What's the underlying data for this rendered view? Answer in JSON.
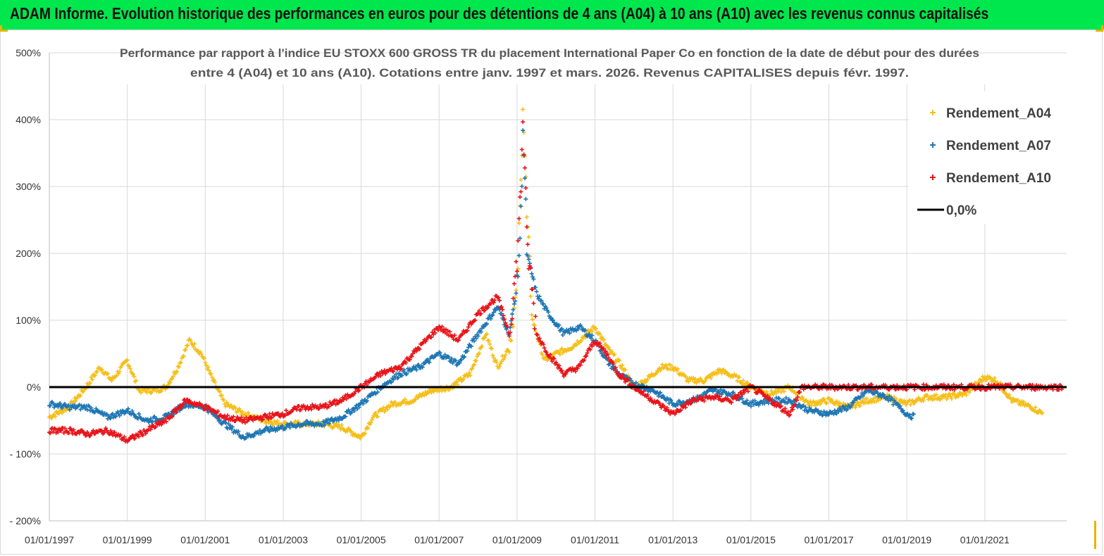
{
  "header": {
    "banner_title": "ADAM Informe. Evolution historique des performances en euros pour des détentions de 4 ans (A04) à 10 ans (A10) avec les revenus connus capitalisés"
  },
  "colors": {
    "banner": "#00e64d",
    "A04": "#f5bf1a",
    "A07": "#1f77b4",
    "A10": "#e8141a",
    "zero": "#000000"
  },
  "chart_data": {
    "type": "scatter",
    "title": [
      "Performance par rapport à l'indice EU STOXX 600 GROSS TR  du placement International Paper Co en fonction de la date de début pour des durées",
      "entre 4 (A04) et 10 ans (A10). Cotations entre janv. 1997 et mars. 2026. Revenus CAPITALISES depuis févr. 1997."
    ],
    "y_ticks": [
      "500%",
      "400%",
      "300%",
      "200%",
      "100%",
      "0%",
      "- 100%",
      "- 200%"
    ],
    "ylim": [
      -200,
      500
    ],
    "x_ticks": [
      "01/01/1997",
      "01/01/1999",
      "01/01/2001",
      "01/01/2003",
      "01/01/2005",
      "01/01/2007",
      "01/01/2009",
      "01/01/2011",
      "01/01/2013",
      "01/01/2015",
      "01/01/2017",
      "01/01/2019",
      "01/01/2021"
    ],
    "xlim": [
      1997.0,
      2023.1
    ],
    "grid": true,
    "legend_position": "top-right",
    "legend": [
      "Rendement_A04",
      "Rendement_A07",
      "Rendement_A10",
      "0,0%"
    ],
    "series": [
      {
        "name": "Rendement_A04",
        "points": [
          [
            1997.0,
            -45
          ],
          [
            1997.5,
            -30
          ],
          [
            1997.8,
            -10
          ],
          [
            1998.0,
            5
          ],
          [
            1998.3,
            30
          ],
          [
            1998.6,
            10
          ],
          [
            1999.0,
            40
          ],
          [
            1999.3,
            -5
          ],
          [
            1999.7,
            -5
          ],
          [
            2000.0,
            0
          ],
          [
            2000.3,
            30
          ],
          [
            2000.6,
            70
          ],
          [
            2000.9,
            50
          ],
          [
            2001.2,
            10
          ],
          [
            2001.5,
            -25
          ],
          [
            2002.0,
            -40
          ],
          [
            2002.5,
            -50
          ],
          [
            2003.0,
            -55
          ],
          [
            2003.5,
            -55
          ],
          [
            2004.0,
            -55
          ],
          [
            2004.5,
            -60
          ],
          [
            2005.0,
            -75
          ],
          [
            2005.3,
            -45
          ],
          [
            2005.8,
            -25
          ],
          [
            2006.3,
            -20
          ],
          [
            2006.8,
            -5
          ],
          [
            2007.3,
            0
          ],
          [
            2007.8,
            20
          ],
          [
            2008.2,
            80
          ],
          [
            2008.5,
            30
          ],
          [
            2008.8,
            60
          ],
          [
            2009.0,
            150
          ],
          [
            2009.1,
            300
          ],
          [
            2009.15,
            440
          ],
          [
            2009.25,
            250
          ],
          [
            2009.4,
            100
          ],
          [
            2009.7,
            40
          ],
          [
            2010.0,
            50
          ],
          [
            2010.4,
            60
          ],
          [
            2010.8,
            80
          ],
          [
            2011.0,
            90
          ],
          [
            2011.3,
            60
          ],
          [
            2011.7,
            30
          ],
          [
            2012.0,
            0
          ],
          [
            2012.3,
            10
          ],
          [
            2012.7,
            30
          ],
          [
            2013.0,
            30
          ],
          [
            2013.4,
            10
          ],
          [
            2013.8,
            10
          ],
          [
            2014.2,
            25
          ],
          [
            2014.6,
            15
          ],
          [
            2015.0,
            0
          ],
          [
            2015.5,
            -10
          ],
          [
            2016.0,
            0
          ],
          [
            2016.5,
            -25
          ],
          [
            2017.0,
            -20
          ],
          [
            2017.5,
            -30
          ],
          [
            2018.0,
            -20
          ],
          [
            2018.5,
            -15
          ],
          [
            2019.0,
            -25
          ],
          [
            2019.5,
            -15
          ],
          [
            2020.0,
            -15
          ],
          [
            2020.5,
            -10
          ],
          [
            2021.0,
            15
          ],
          [
            2021.3,
            10
          ],
          [
            2021.7,
            -20
          ],
          [
            2022.2,
            -30
          ],
          [
            2022.5,
            -40
          ]
        ]
      },
      {
        "name": "Rendement_A07",
        "points": [
          [
            1997.0,
            -25
          ],
          [
            1997.5,
            -30
          ],
          [
            1998.0,
            -30
          ],
          [
            1998.5,
            -45
          ],
          [
            1999.0,
            -35
          ],
          [
            1999.5,
            -50
          ],
          [
            2000.0,
            -45
          ],
          [
            2000.5,
            -25
          ],
          [
            2001.0,
            -30
          ],
          [
            2001.5,
            -55
          ],
          [
            2002.0,
            -75
          ],
          [
            2002.5,
            -65
          ],
          [
            2003.0,
            -60
          ],
          [
            2003.5,
            -55
          ],
          [
            2004.0,
            -55
          ],
          [
            2004.5,
            -45
          ],
          [
            2005.0,
            -25
          ],
          [
            2005.5,
            0
          ],
          [
            2006.0,
            20
          ],
          [
            2006.5,
            30
          ],
          [
            2007.0,
            50
          ],
          [
            2007.5,
            35
          ],
          [
            2008.0,
            80
          ],
          [
            2008.5,
            120
          ],
          [
            2008.8,
            80
          ],
          [
            2009.0,
            150
          ],
          [
            2009.1,
            250
          ],
          [
            2009.15,
            400
          ],
          [
            2009.25,
            200
          ],
          [
            2009.5,
            140
          ],
          [
            2009.8,
            110
          ],
          [
            2010.2,
            80
          ],
          [
            2010.6,
            90
          ],
          [
            2011.0,
            70
          ],
          [
            2011.3,
            40
          ],
          [
            2011.6,
            20
          ],
          [
            2012.0,
            5
          ],
          [
            2012.5,
            -5
          ],
          [
            2013.0,
            -25
          ],
          [
            2013.5,
            -20
          ],
          [
            2014.0,
            -5
          ],
          [
            2014.5,
            -10
          ],
          [
            2015.0,
            -25
          ],
          [
            2015.5,
            -20
          ],
          [
            2016.0,
            -20
          ],
          [
            2016.5,
            -35
          ],
          [
            2017.0,
            -40
          ],
          [
            2017.5,
            -30
          ],
          [
            2018.0,
            -5
          ],
          [
            2018.5,
            -15
          ],
          [
            2019.0,
            -40
          ],
          [
            2019.2,
            -45
          ]
        ]
      },
      {
        "name": "Rendement_A10",
        "points": [
          [
            1997.0,
            -65
          ],
          [
            1997.5,
            -65
          ],
          [
            1998.0,
            -70
          ],
          [
            1998.5,
            -65
          ],
          [
            1999.0,
            -80
          ],
          [
            1999.5,
            -65
          ],
          [
            2000.0,
            -50
          ],
          [
            2000.5,
            -20
          ],
          [
            2001.0,
            -30
          ],
          [
            2001.5,
            -45
          ],
          [
            2002.0,
            -50
          ],
          [
            2002.5,
            -45
          ],
          [
            2003.0,
            -40
          ],
          [
            2003.5,
            -30
          ],
          [
            2004.0,
            -30
          ],
          [
            2004.5,
            -20
          ],
          [
            2005.0,
            0
          ],
          [
            2005.5,
            20
          ],
          [
            2006.0,
            30
          ],
          [
            2006.5,
            60
          ],
          [
            2007.0,
            90
          ],
          [
            2007.5,
            70
          ],
          [
            2008.0,
            110
          ],
          [
            2008.5,
            135
          ],
          [
            2008.8,
            80
          ],
          [
            2009.0,
            190
          ],
          [
            2009.1,
            300
          ],
          [
            2009.15,
            410
          ],
          [
            2009.25,
            220
          ],
          [
            2009.5,
            80
          ],
          [
            2009.8,
            50
          ],
          [
            2010.2,
            20
          ],
          [
            2010.6,
            30
          ],
          [
            2011.0,
            70
          ],
          [
            2011.3,
            50
          ],
          [
            2011.6,
            20
          ],
          [
            2012.0,
            0
          ],
          [
            2012.5,
            -20
          ],
          [
            2013.0,
            -40
          ],
          [
            2013.5,
            -20
          ],
          [
            2014.0,
            -15
          ],
          [
            2014.5,
            -20
          ],
          [
            2015.0,
            0
          ],
          [
            2015.5,
            -20
          ],
          [
            2016.0,
            -40
          ],
          [
            2016.3,
            0
          ],
          [
            2018.0,
            0
          ],
          [
            2020.0,
            0
          ],
          [
            2022.0,
            0
          ],
          [
            2023.0,
            0
          ]
        ]
      },
      {
        "name": "0,0%",
        "points": [
          [
            1997.0,
            0
          ],
          [
            2023.1,
            0
          ]
        ]
      }
    ]
  }
}
